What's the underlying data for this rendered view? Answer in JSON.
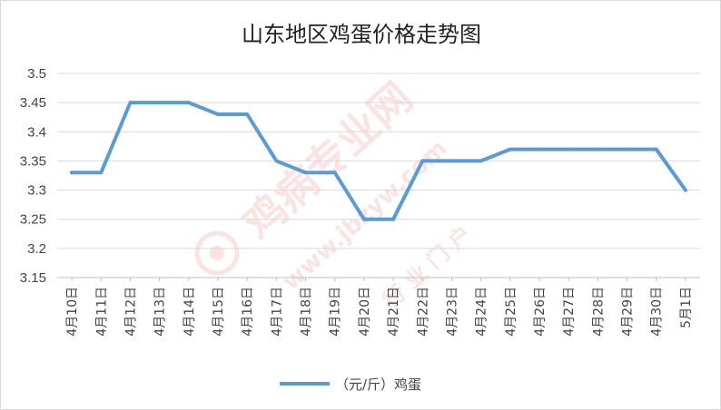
{
  "chart_data": {
    "type": "line",
    "title": "山东地区鸡蛋价格走势图",
    "categories": [
      "4月10日",
      "4月11日",
      "4月12日",
      "4月13日",
      "4月14日",
      "4月15日",
      "4月16日",
      "4月17日",
      "4月18日",
      "4月19日",
      "4月20日",
      "4月21日",
      "4月22日",
      "4月23日",
      "4月24日",
      "4月25日",
      "4月26日",
      "4月27日",
      "4月28日",
      "4月29日",
      "4月30日",
      "5月1日"
    ],
    "series": [
      {
        "name": "（元/斤）鸡蛋",
        "values": [
          3.33,
          3.33,
          3.45,
          3.45,
          3.45,
          3.43,
          3.43,
          3.35,
          3.33,
          3.33,
          3.25,
          3.25,
          3.35,
          3.35,
          3.35,
          3.37,
          3.37,
          3.37,
          3.37,
          3.37,
          3.37,
          3.3
        ]
      }
    ],
    "ylim": [
      3.15,
      3.5
    ],
    "yticks": [
      "3.15",
      "3.2",
      "3.25",
      "3.3",
      "3.35",
      "3.4",
      "3.45",
      "3.5"
    ],
    "grid": true,
    "legend": "bottom",
    "line_color": "#5b9bd5",
    "grid_color": "#d9d9d9"
  },
  "watermark": {
    "line1": "鸡病专业网",
    "line2": "www.jbzyw.com",
    "line3": "行 业 门 户"
  }
}
